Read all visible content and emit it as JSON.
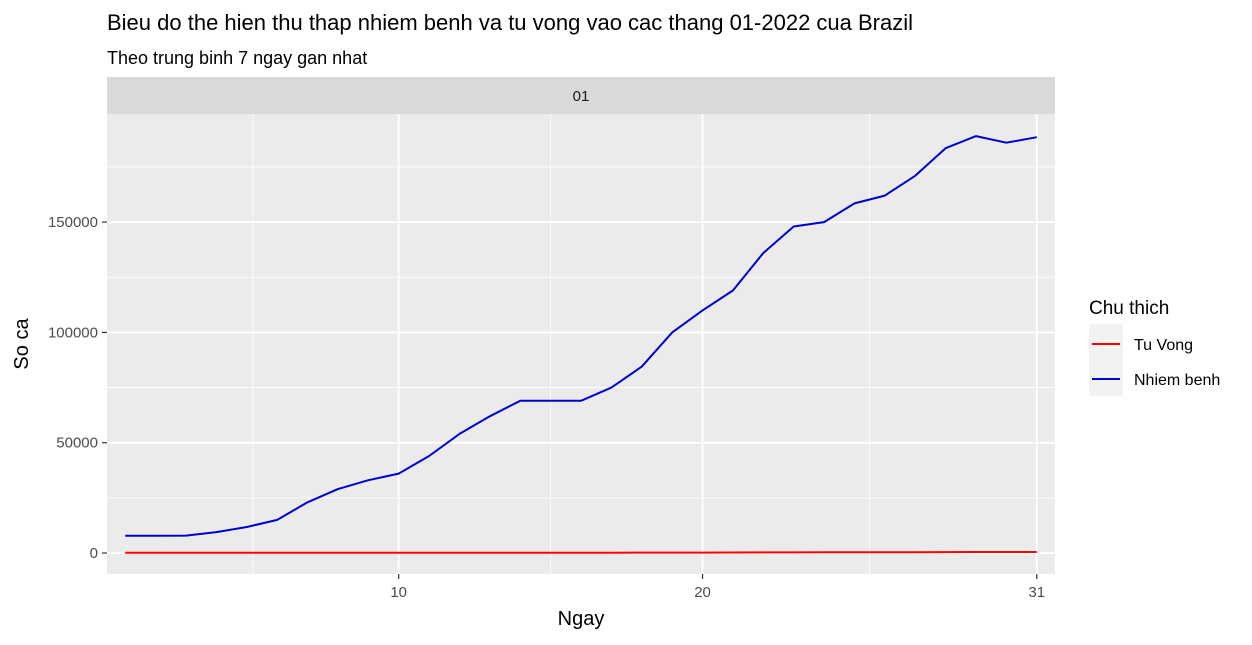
{
  "chart_data": {
    "type": "line",
    "title": "Bieu do the hien thu thap nhiem benh va tu vong vao cac thang 01-2022 cua Brazil",
    "subtitle": "Theo trung binh 7 ngay gan nhat",
    "facet_label": "01",
    "xlabel": "Ngay",
    "ylabel": "So ca",
    "xlim": [
      0.4,
      31.6
    ],
    "ylim": [
      -9500,
      199000
    ],
    "x_ticks": [
      10,
      20,
      31
    ],
    "y_ticks": [
      0,
      50000,
      100000,
      150000
    ],
    "y_tick_labels": [
      "0",
      "50000",
      "100000",
      "150000"
    ],
    "grid": true,
    "legend": {
      "title": "Chu thich",
      "position": "right"
    },
    "x": [
      1,
      2,
      3,
      4,
      5,
      6,
      7,
      8,
      9,
      10,
      11,
      12,
      13,
      14,
      15,
      16,
      17,
      18,
      19,
      20,
      21,
      22,
      23,
      24,
      25,
      26,
      27,
      28,
      29,
      30,
      31
    ],
    "series": [
      {
        "name": "Tu Vong",
        "color": "#ff0000",
        "values": [
          100,
          100,
          100,
          100,
          100,
          100,
          100,
          100,
          100,
          100,
          110,
          120,
          130,
          140,
          150,
          150,
          160,
          180,
          200,
          220,
          250,
          280,
          300,
          320,
          340,
          360,
          400,
          430,
          450,
          470,
          490
        ]
      },
      {
        "name": "Nhiem benh",
        "color": "#0000cc",
        "values": [
          7800,
          7800,
          7900,
          9500,
          11800,
          15000,
          23000,
          29000,
          33000,
          36000,
          44000,
          54000,
          62000,
          69000,
          69000,
          69000,
          75000,
          84500,
          100000,
          110000,
          119000,
          136000,
          148000,
          150000,
          158500,
          162000,
          171000,
          183500,
          189000,
          186000,
          188500
        ]
      }
    ]
  }
}
